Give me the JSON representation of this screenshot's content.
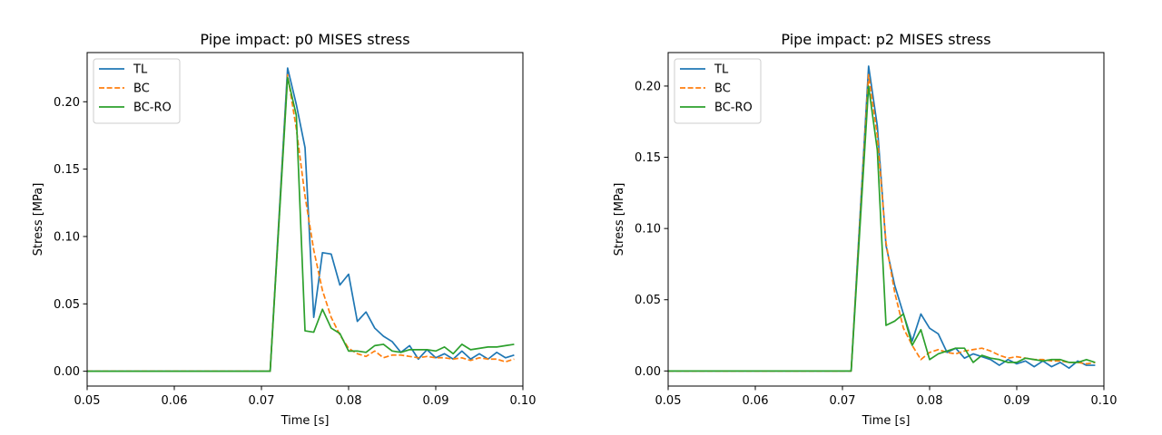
{
  "chart_data": [
    {
      "type": "line",
      "title": "Pipe impact: p0 MISES stress",
      "xlabel": "Time [s]",
      "ylabel": "Stress [MPa]",
      "xlim": [
        0.05,
        0.1
      ],
      "ylim": [
        -0.011,
        0.2365
      ],
      "xticks": [
        0.05,
        0.06,
        0.07,
        0.08,
        0.09,
        0.1
      ],
      "xtick_labels": [
        "0.05",
        "0.06",
        "0.07",
        "0.08",
        "0.09",
        "0.10"
      ],
      "yticks": [
        0.0,
        0.05,
        0.1,
        0.15,
        0.2
      ],
      "ytick_labels": [
        "0.00",
        "0.05",
        "0.10",
        "0.15",
        "0.20"
      ],
      "grid": false,
      "legend_position": "top-left",
      "series": [
        {
          "name": "TL",
          "color": "#1f77b4",
          "dash": "solid",
          "x": [
            0.05,
            0.071,
            0.073,
            0.074,
            0.075,
            0.076,
            0.077,
            0.078,
            0.079,
            0.08,
            0.081,
            0.082,
            0.083,
            0.084,
            0.085,
            0.086,
            0.087,
            0.088,
            0.089,
            0.09,
            0.091,
            0.092,
            0.093,
            0.094,
            0.095,
            0.096,
            0.097,
            0.098,
            0.099
          ],
          "y": [
            0.0,
            0.0,
            0.225,
            0.198,
            0.166,
            0.04,
            0.088,
            0.087,
            0.064,
            0.072,
            0.037,
            0.044,
            0.032,
            0.026,
            0.022,
            0.014,
            0.019,
            0.009,
            0.016,
            0.01,
            0.013,
            0.009,
            0.015,
            0.009,
            0.013,
            0.009,
            0.014,
            0.01,
            0.012
          ]
        },
        {
          "name": "BC",
          "color": "#ff7f0e",
          "dash": "dashed",
          "x": [
            0.05,
            0.071,
            0.073,
            0.074,
            0.075,
            0.076,
            0.077,
            0.078,
            0.079,
            0.08,
            0.081,
            0.082,
            0.083,
            0.084,
            0.085,
            0.086,
            0.087,
            0.088,
            0.089,
            0.09,
            0.091,
            0.092,
            0.093,
            0.094,
            0.095,
            0.096,
            0.097,
            0.098,
            0.099
          ],
          "y": [
            0.0,
            0.0,
            0.22,
            0.18,
            0.13,
            0.09,
            0.06,
            0.04,
            0.027,
            0.017,
            0.013,
            0.011,
            0.015,
            0.01,
            0.012,
            0.012,
            0.011,
            0.01,
            0.011,
            0.01,
            0.01,
            0.009,
            0.01,
            0.008,
            0.01,
            0.009,
            0.009,
            0.007,
            0.009
          ]
        },
        {
          "name": "BC-RO",
          "color": "#2ca02c",
          "dash": "solid",
          "x": [
            0.05,
            0.071,
            0.073,
            0.074,
            0.075,
            0.076,
            0.077,
            0.078,
            0.079,
            0.08,
            0.081,
            0.082,
            0.083,
            0.084,
            0.085,
            0.086,
            0.087,
            0.088,
            0.089,
            0.09,
            0.091,
            0.092,
            0.093,
            0.094,
            0.095,
            0.096,
            0.097,
            0.098,
            0.099
          ],
          "y": [
            0.0,
            0.0,
            0.218,
            0.19,
            0.03,
            0.029,
            0.046,
            0.032,
            0.028,
            0.015,
            0.015,
            0.014,
            0.019,
            0.02,
            0.015,
            0.014,
            0.016,
            0.016,
            0.016,
            0.015,
            0.018,
            0.013,
            0.02,
            0.016,
            0.017,
            0.018,
            0.018,
            0.019,
            0.02
          ]
        }
      ]
    },
    {
      "type": "line",
      "title": "Pipe impact: p2 MISES stress",
      "xlabel": "Time [s]",
      "ylabel": "Stress [MPa]",
      "xlim": [
        0.05,
        0.1
      ],
      "ylim": [
        -0.0106,
        0.2235
      ],
      "xticks": [
        0.05,
        0.06,
        0.07,
        0.08,
        0.09,
        0.1
      ],
      "xtick_labels": [
        "0.05",
        "0.06",
        "0.07",
        "0.08",
        "0.09",
        "0.10"
      ],
      "yticks": [
        0.0,
        0.05,
        0.1,
        0.15,
        0.2
      ],
      "ytick_labels": [
        "0.00",
        "0.05",
        "0.10",
        "0.15",
        "0.20"
      ],
      "grid": false,
      "legend_position": "top-left",
      "series": [
        {
          "name": "TL",
          "color": "#1f77b4",
          "dash": "solid",
          "x": [
            0.05,
            0.071,
            0.073,
            0.074,
            0.075,
            0.076,
            0.077,
            0.078,
            0.079,
            0.08,
            0.081,
            0.082,
            0.083,
            0.084,
            0.085,
            0.086,
            0.087,
            0.088,
            0.089,
            0.09,
            0.091,
            0.092,
            0.093,
            0.094,
            0.095,
            0.096,
            0.097,
            0.098,
            0.099
          ],
          "y": [
            0.0,
            0.0,
            0.214,
            0.172,
            0.088,
            0.06,
            0.04,
            0.021,
            0.04,
            0.03,
            0.026,
            0.013,
            0.016,
            0.009,
            0.012,
            0.01,
            0.008,
            0.004,
            0.008,
            0.005,
            0.007,
            0.003,
            0.007,
            0.003,
            0.006,
            0.002,
            0.007,
            0.004,
            0.004
          ]
        },
        {
          "name": "BC",
          "color": "#ff7f0e",
          "dash": "dashed",
          "x": [
            0.05,
            0.071,
            0.073,
            0.074,
            0.075,
            0.076,
            0.077,
            0.078,
            0.079,
            0.08,
            0.081,
            0.082,
            0.083,
            0.084,
            0.085,
            0.086,
            0.087,
            0.088,
            0.089,
            0.09,
            0.091,
            0.092,
            0.093,
            0.094,
            0.095,
            0.096,
            0.097,
            0.098,
            0.099
          ],
          "y": [
            0.0,
            0.0,
            0.208,
            0.165,
            0.09,
            0.055,
            0.03,
            0.018,
            0.008,
            0.013,
            0.015,
            0.013,
            0.012,
            0.014,
            0.015,
            0.016,
            0.014,
            0.011,
            0.009,
            0.01,
            0.009,
            0.008,
            0.008,
            0.007,
            0.007,
            0.006,
            0.006,
            0.005,
            0.006
          ]
        },
        {
          "name": "BC-RO",
          "color": "#2ca02c",
          "dash": "solid",
          "x": [
            0.05,
            0.071,
            0.073,
            0.074,
            0.075,
            0.076,
            0.077,
            0.078,
            0.079,
            0.08,
            0.081,
            0.082,
            0.083,
            0.084,
            0.085,
            0.086,
            0.087,
            0.088,
            0.089,
            0.09,
            0.091,
            0.092,
            0.093,
            0.094,
            0.095,
            0.096,
            0.097,
            0.098,
            0.099
          ],
          "y": [
            0.0,
            0.0,
            0.2,
            0.155,
            0.032,
            0.035,
            0.04,
            0.018,
            0.029,
            0.008,
            0.012,
            0.014,
            0.016,
            0.016,
            0.006,
            0.011,
            0.009,
            0.008,
            0.006,
            0.006,
            0.009,
            0.008,
            0.007,
            0.008,
            0.008,
            0.006,
            0.006,
            0.008,
            0.006
          ]
        }
      ]
    }
  ]
}
